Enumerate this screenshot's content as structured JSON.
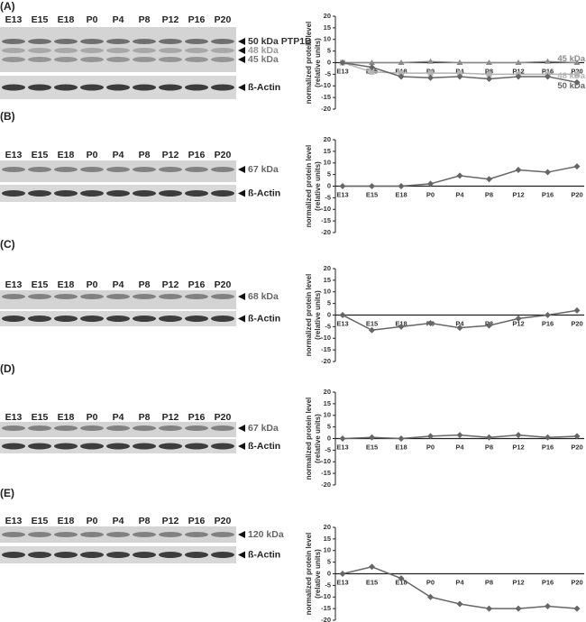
{
  "panels": [
    {
      "label": "(A)",
      "lanes": [
        "E13",
        "E15",
        "E18",
        "P0",
        "P4",
        "P8",
        "P12",
        "P16",
        "P20"
      ],
      "bands": [
        "50 kDa PTP1B",
        "48 kDa",
        "45 kDa"
      ],
      "loading": "ß-Actin"
    },
    {
      "label": "(B)",
      "lanes": [
        "E13",
        "E15",
        "E18",
        "P0",
        "P4",
        "P8",
        "P12",
        "P16",
        "P20"
      ],
      "bands": [
        "67 kDa"
      ],
      "loading": "ß-Actin"
    },
    {
      "label": "(C)",
      "lanes": [
        "E13",
        "E15",
        "E18",
        "P0",
        "P4",
        "P8",
        "P12",
        "P16",
        "P20"
      ],
      "bands": [
        "68 kDa"
      ],
      "loading": "ß-Actin"
    },
    {
      "label": "(D)",
      "lanes": [
        "E13",
        "E15",
        "E18",
        "P0",
        "P4",
        "P8",
        "P12",
        "P16",
        "P20"
      ],
      "bands": [
        "67 kDa"
      ],
      "loading": "ß-Actin"
    },
    {
      "label": "(E)",
      "lanes": [
        "E13",
        "E15",
        "E18",
        "P0",
        "P4",
        "P8",
        "P12",
        "P16",
        "P20"
      ],
      "bands": [
        "120 kDa"
      ],
      "loading": "ß-Actin"
    }
  ],
  "chart_data": [
    {
      "type": "line",
      "ylabel": [
        "normalized protein level",
        "(relative units)"
      ],
      "categories": [
        "E13",
        "E15",
        "E18",
        "P0",
        "P4",
        "P8",
        "P12",
        "P16",
        "P20"
      ],
      "ylim": [
        -20,
        20
      ],
      "yticks": [
        -20,
        -15,
        -10,
        -5,
        0,
        5,
        10,
        15,
        20
      ],
      "series": [
        {
          "name": "45 kDa",
          "color": "#8a8a8a",
          "marker": "triangle",
          "values": [
            0,
            0,
            0,
            0.5,
            0,
            0,
            0,
            0.5,
            0
          ]
        },
        {
          "name": "48 kDa",
          "color": "#b4b4b4",
          "marker": "square",
          "values": [
            0,
            -4,
            -4.5,
            -4.5,
            -4.5,
            -5,
            -5,
            -5,
            -5
          ]
        },
        {
          "name": "50 kDa",
          "color": "#666666",
          "marker": "diamond",
          "values": [
            0,
            -2,
            -6,
            -6.5,
            -6,
            -7,
            -6,
            -6,
            -8.5
          ]
        }
      ]
    },
    {
      "type": "line",
      "ylabel": [
        "normalized protein level",
        "(relative units)"
      ],
      "categories": [
        "E13",
        "E15",
        "E18",
        "P0",
        "P4",
        "P8",
        "P12",
        "P16",
        "P20"
      ],
      "ylim": [
        -20,
        20
      ],
      "yticks": [
        -20,
        -15,
        -10,
        -5,
        0,
        5,
        10,
        15,
        20
      ],
      "series": [
        {
          "color": "#666666",
          "marker": "diamond",
          "values": [
            0,
            0,
            0,
            1,
            4.5,
            3,
            7,
            6,
            8.5
          ]
        }
      ]
    },
    {
      "type": "line",
      "ylabel": [
        "normalized protein level",
        "(relative units)"
      ],
      "categories": [
        "E13",
        "E15",
        "E18",
        "P0",
        "P4",
        "P8",
        "P12",
        "P16",
        "P20"
      ],
      "ylim": [
        -20,
        20
      ],
      "yticks": [
        -20,
        -15,
        -10,
        -5,
        0,
        5,
        10,
        15,
        20
      ],
      "series": [
        {
          "color": "#666666",
          "marker": "diamond",
          "values": [
            0,
            -6.5,
            -5,
            -3.5,
            -5.5,
            -4.5,
            -1.5,
            0,
            2
          ]
        }
      ]
    },
    {
      "type": "line",
      "ylabel": [
        "normalized protein level",
        "(relative units)"
      ],
      "categories": [
        "E13",
        "E15",
        "E18",
        "P0",
        "P4",
        "P8",
        "P12",
        "P16",
        "P20"
      ],
      "ylim": [
        -20,
        20
      ],
      "yticks": [
        -20,
        -15,
        -10,
        -5,
        0,
        5,
        10,
        15,
        20
      ],
      "series": [
        {
          "color": "#666666",
          "marker": "diamond",
          "values": [
            0,
            0.5,
            0,
            1,
            1.5,
            0.5,
            1.5,
            0.5,
            1
          ]
        }
      ]
    },
    {
      "type": "line",
      "ylabel": [
        "normalized protein level",
        "(relative units)"
      ],
      "categories": [
        "E13",
        "E15",
        "E18",
        "P0",
        "P4",
        "P8",
        "P12",
        "P16",
        "P20"
      ],
      "ylim": [
        -20,
        20
      ],
      "yticks": [
        -20,
        -15,
        -10,
        -5,
        0,
        5,
        10,
        15,
        20
      ],
      "series": [
        {
          "color": "#666666",
          "marker": "diamond",
          "values": [
            0,
            3,
            -2,
            -10,
            -13,
            -15,
            -15,
            -14,
            -15
          ]
        }
      ]
    }
  ]
}
